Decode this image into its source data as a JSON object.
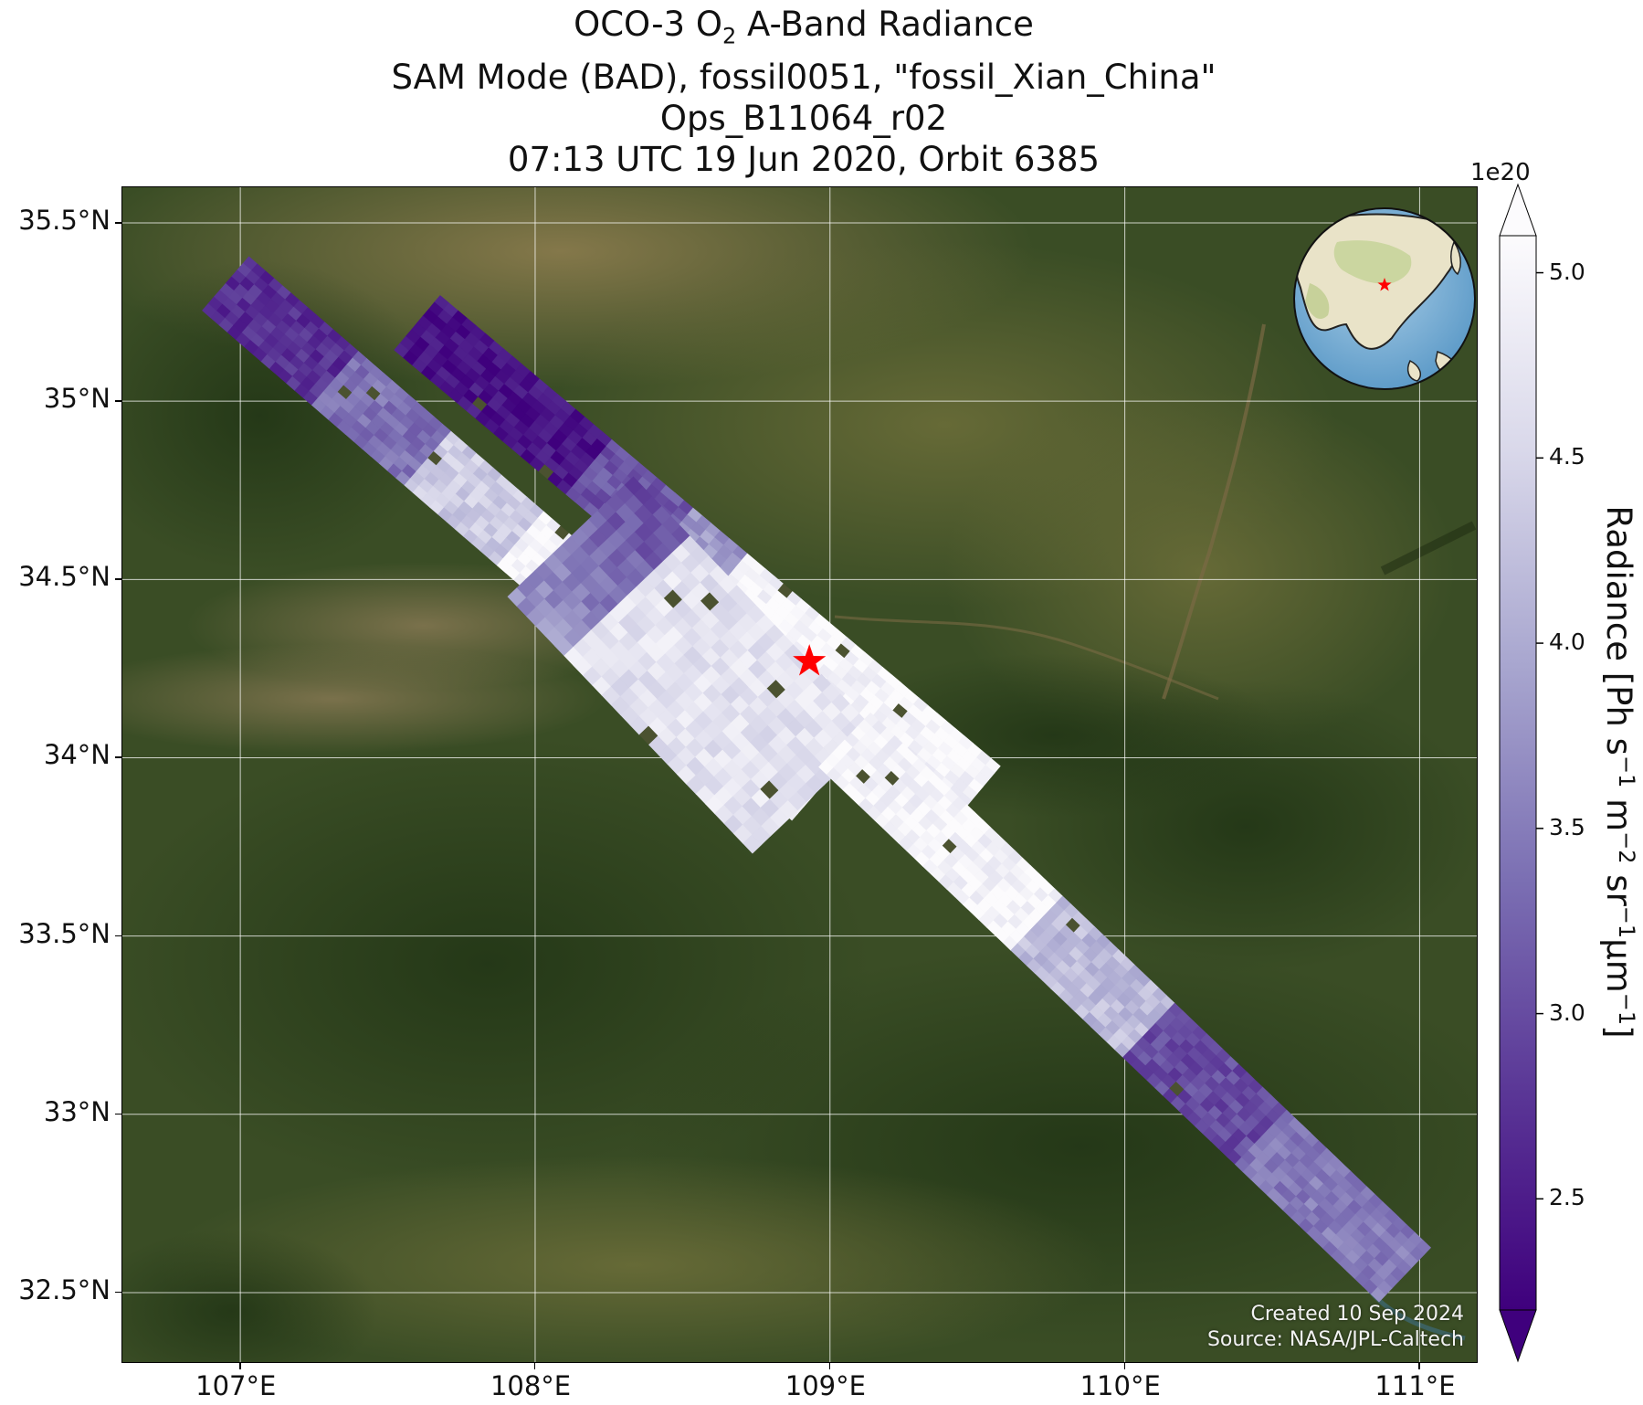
{
  "title": {
    "line1_pre": "OCO-3 O",
    "line1_sub": "2",
    "line1_post": " A-Band Radiance",
    "line2": "SAM Mode (BAD), fossil0051, \"fossil_Xian_China\"",
    "line3": "Ops_B11064_r02",
    "line4": "07:13 UTC 19 Jun 2020, Orbit 6385"
  },
  "credit": {
    "created": "Created 10 Sep 2024",
    "source": "Source: NASA/JPL-Caltech"
  },
  "colorbar": {
    "exponent": "1e20",
    "ticks": [
      "2.5",
      "3.0",
      "3.5",
      "4.0",
      "4.5",
      "5.0"
    ],
    "tick_values": [
      2.5,
      3.0,
      3.5,
      4.0,
      4.5,
      5.0
    ],
    "range": [
      2.2,
      5.1
    ],
    "extend": "both",
    "colormap": "Purples_r",
    "label": {
      "p1": "Radiance [Ph s",
      "s1": "−1",
      "p2": " m",
      "s2": "−2",
      "p3": " sr",
      "s3": "−1",
      "p4": "μm",
      "s4": "−1",
      "p5": "]"
    }
  },
  "map": {
    "lon_range": [
      106.6,
      111.2
    ],
    "lat_range": [
      32.3,
      35.6
    ],
    "lon_ticks": [
      107,
      108,
      109,
      110,
      111
    ],
    "lon_tick_labels": [
      "107°E",
      "108°E",
      "109°E",
      "110°E",
      "111°E"
    ],
    "lat_ticks": [
      32.5,
      33,
      33.5,
      34,
      34.5,
      35,
      35.5
    ],
    "lat_tick_labels": [
      "32.5°N",
      "33°N",
      "33.5°N",
      "34°N",
      "34.5°N",
      "35°N",
      "35.5°N"
    ],
    "gridlines": true,
    "basemap": "satellite imagery",
    "target": {
      "name": "red-star",
      "lon": 108.93,
      "lat": 34.27,
      "color": "#ff0000"
    },
    "inset_globe": {
      "position": "top-right",
      "marker_color": "#ff0000"
    }
  }
}
